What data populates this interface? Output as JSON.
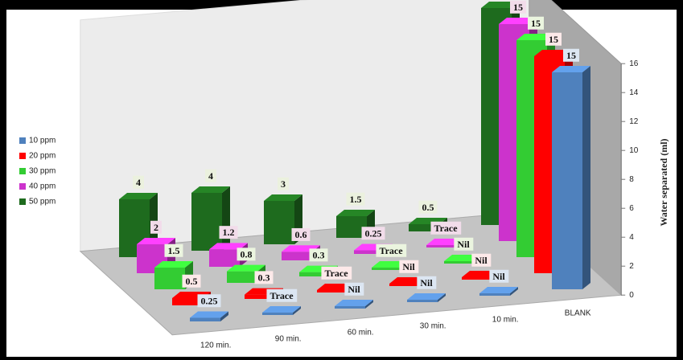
{
  "chart_data": {
    "type": "bar3d",
    "categories": [
      "120 min.",
      "90 min.",
      "60 min.",
      "30 min.",
      "10 min.",
      "BLANK"
    ],
    "series": [
      {
        "name": "10 ppm",
        "color": "#4f81bd",
        "values": [
          0.25,
          0,
          0,
          0,
          0,
          15
        ],
        "value_labels": [
          "0.25",
          "Trace",
          "Nil",
          "Nil",
          "Nil",
          "15"
        ]
      },
      {
        "name": "20 ppm",
        "color": "#ff0000",
        "values": [
          0.5,
          0.3,
          0,
          0,
          0,
          15
        ],
        "value_labels": [
          "0.5",
          "0.3",
          "Trace",
          "Nil",
          "Nil",
          "15"
        ]
      },
      {
        "name": "30 ppm",
        "color": "#33cc33",
        "values": [
          1.5,
          0.8,
          0.3,
          0,
          0,
          15
        ],
        "value_labels": [
          "1.5",
          "0.8",
          "0.3",
          "Trace",
          "Nil",
          "15"
        ]
      },
      {
        "name": "40 ppm",
        "color": "#cc33cc",
        "values": [
          2,
          1.2,
          0.6,
          0.25,
          0,
          15
        ],
        "value_labels": [
          "2",
          "1.2",
          "0.6",
          "0.25",
          "Trace",
          "15"
        ]
      },
      {
        "name": "50 ppm",
        "color": "#1e6b1e",
        "values": [
          4,
          4,
          3,
          1.5,
          0.5,
          15
        ],
        "value_labels": [
          "4",
          "4",
          "3",
          "1.5",
          "0.5",
          "15"
        ]
      }
    ],
    "ylabel": "Water separated (ml)",
    "ylim": [
      0,
      16
    ],
    "yticks": [
      0,
      2,
      4,
      6,
      8,
      10,
      12,
      14,
      16
    ],
    "legend": "left"
  }
}
